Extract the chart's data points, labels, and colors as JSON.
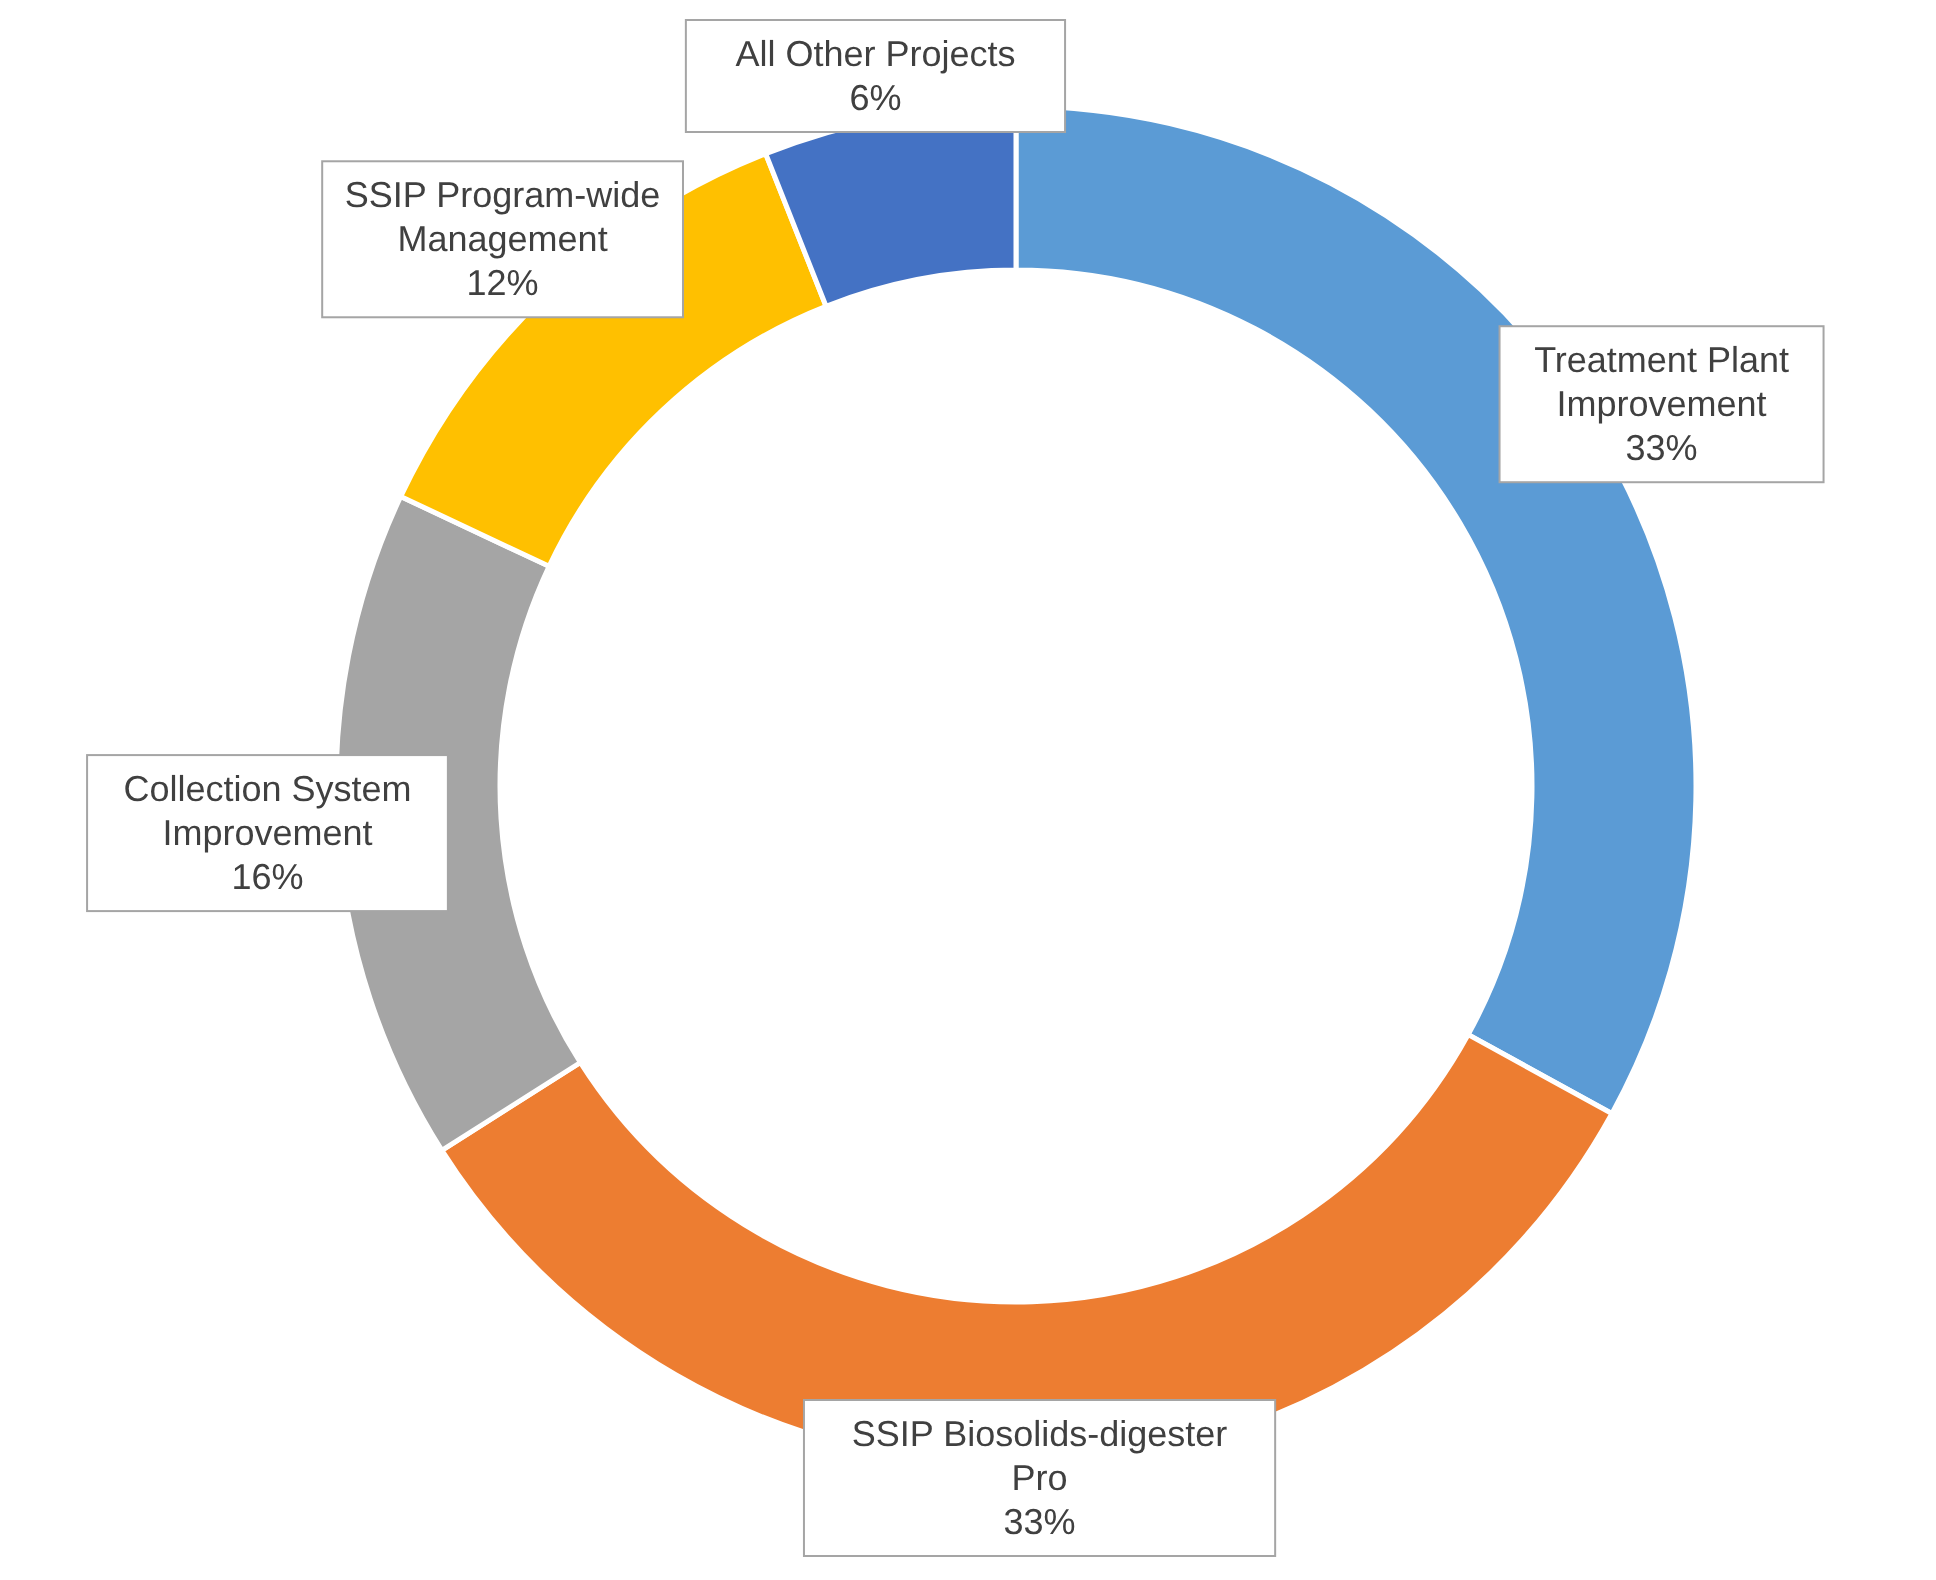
{
  "chart_data": {
    "type": "donut",
    "categories": [
      "Treatment Plant Improvement",
      "SSIP Biosolids-digester Pro",
      "Collection System Improvement",
      "SSIP Program-wide Management",
      "All Other Projects"
    ],
    "values": [
      33,
      33,
      16,
      12,
      6
    ],
    "value_labels": [
      "33%",
      "33%",
      "16%",
      "12%",
      "6%"
    ],
    "colors": [
      "#5b9bd5",
      "#ed7d31",
      "#a5a5a5",
      "#ffc000",
      "#4472c4"
    ],
    "legend": false
  }
}
